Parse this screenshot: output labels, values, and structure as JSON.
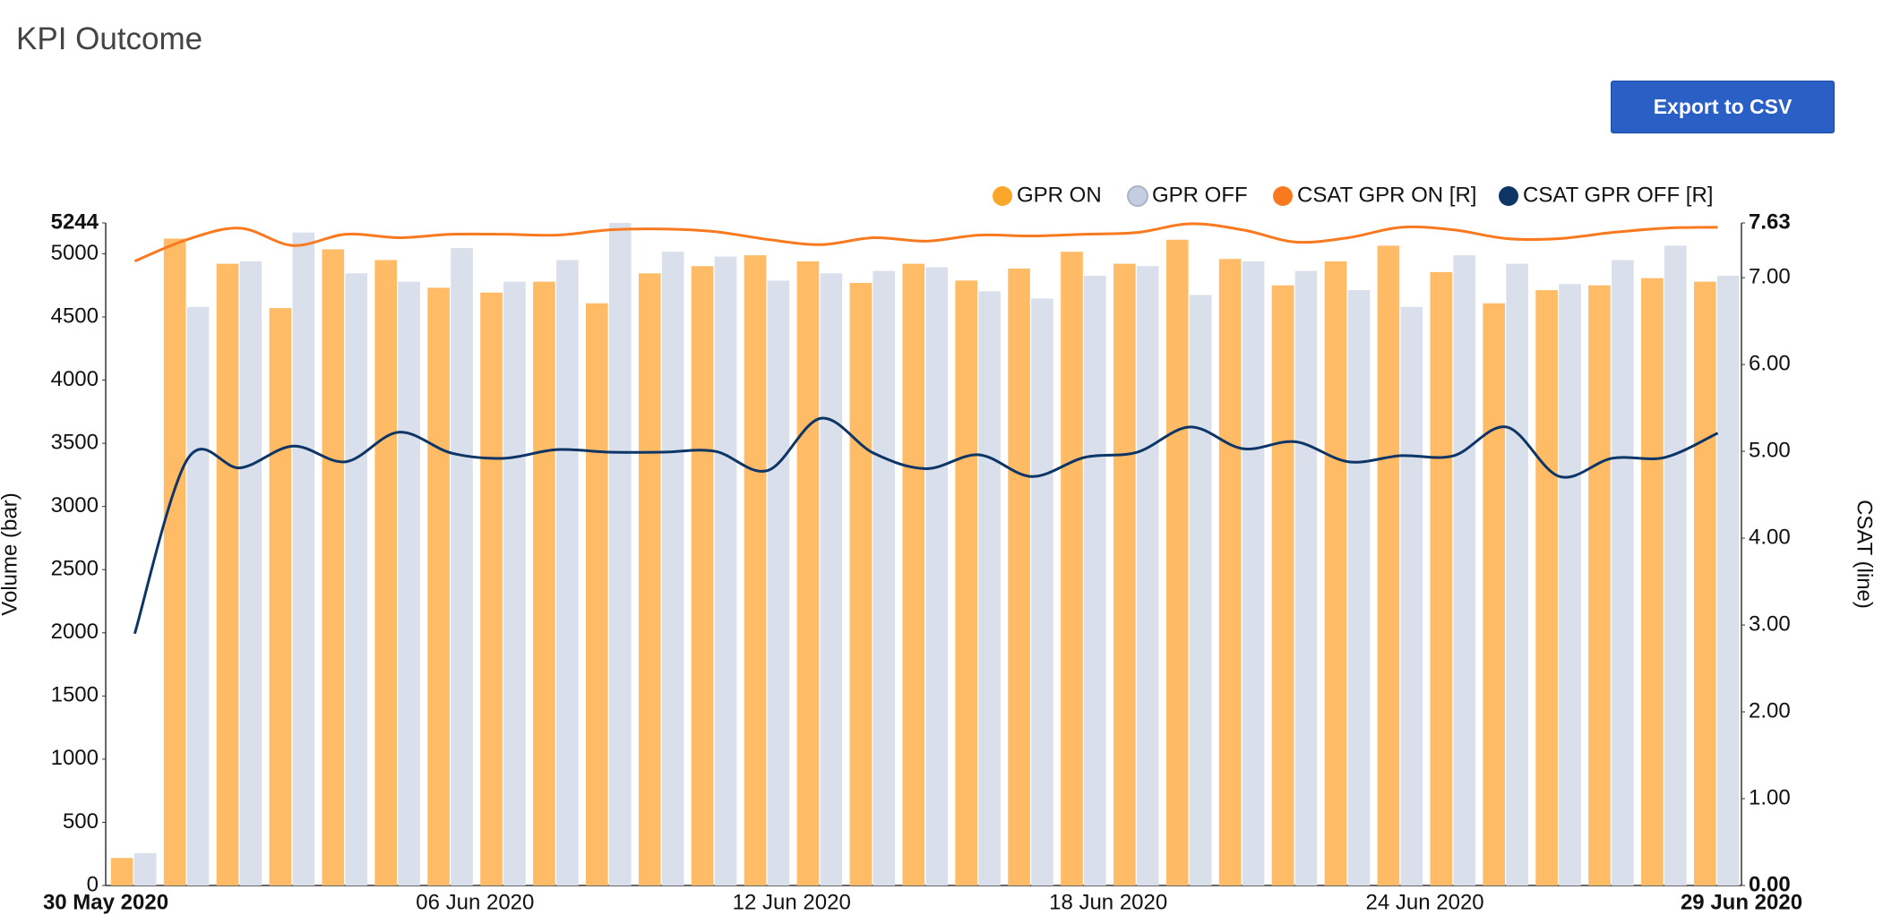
{
  "chart_data": {
    "type": "bar-line",
    "title": "KPI Outcome",
    "button": "Export to CSV",
    "ylabel": "Volume (bar)",
    "y2label": "CSAT (line)",
    "categories": [
      "30 May 2020",
      null,
      null,
      null,
      null,
      null,
      null,
      "06 Jun 2020",
      null,
      null,
      null,
      null,
      null,
      "12 Jun 2020",
      null,
      null,
      null,
      null,
      null,
      "18 Jun 2020",
      null,
      null,
      null,
      null,
      null,
      "24 Jun 2020",
      null,
      null,
      null,
      null,
      "29 Jun 2020"
    ],
    "series": [
      {
        "name": "GPR ON",
        "type": "bar",
        "color": "#ffbb66",
        "legend_color": "#f9a62b",
        "values": [
          218,
          5120,
          4921,
          4570,
          5035,
          4950,
          4731,
          4693,
          4779,
          4608,
          4845,
          4902,
          4988,
          4940,
          4769,
          4921,
          4788,
          4883,
          5016,
          4921,
          5111,
          4959,
          4750,
          4940,
          5064,
          4855,
          4608,
          4712,
          4750,
          4807,
          4779
        ]
      },
      {
        "name": "GPR OFF",
        "type": "bar",
        "color": "#d9dfeb",
        "legend_color": "#c5cde0",
        "values": [
          256,
          4579,
          4940,
          5168,
          4845,
          4779,
          5045,
          4779,
          4950,
          5244,
          5016,
          4978,
          4788,
          4845,
          4864,
          4893,
          4703,
          4646,
          4826,
          4902,
          4674,
          4940,
          4864,
          4712,
          4579,
          4988,
          4921,
          4760,
          4950,
          5064,
          4826
        ]
      },
      {
        "name": "CSAT GPR ON [R]",
        "type": "line",
        "axis": "y2",
        "color": "#f97a1e",
        "legend_color": "#f97a1e",
        "values": [
          7.19,
          7.44,
          7.57,
          7.37,
          7.5,
          7.46,
          7.5,
          7.5,
          7.49,
          7.55,
          7.56,
          7.53,
          7.44,
          7.38,
          7.46,
          7.42,
          7.49,
          7.48,
          7.5,
          7.52,
          7.62,
          7.55,
          7.41,
          7.46,
          7.58,
          7.55,
          7.45,
          7.45,
          7.52,
          7.57,
          7.58
        ]
      },
      {
        "name": "CSAT GPR OFF [R]",
        "type": "line",
        "axis": "y2",
        "color": "#0d3566",
        "legend_color": "#0d3566",
        "values": [
          2.9,
          4.91,
          4.81,
          5.06,
          4.88,
          5.22,
          4.98,
          4.92,
          5.02,
          4.99,
          4.99,
          5.0,
          4.78,
          5.38,
          4.98,
          4.8,
          4.96,
          4.71,
          4.93,
          4.99,
          5.28,
          5.03,
          5.11,
          4.88,
          4.95,
          4.95,
          5.28,
          4.71,
          4.92,
          4.93,
          5.21
        ]
      }
    ],
    "ylim": [
      0,
      5244
    ],
    "yticks": [
      0,
      500,
      1000,
      1500,
      2000,
      2500,
      3000,
      3500,
      4000,
      4500,
      5000,
      5244
    ],
    "y2lim": [
      0,
      7.63
    ],
    "y2ticks": [
      {
        "value": 0,
        "label": "0.00"
      },
      {
        "value": 1,
        "label": "1.00"
      },
      {
        "value": 2,
        "label": "2.00"
      },
      {
        "value": 3,
        "label": "3.00"
      },
      {
        "value": 4,
        "label": "4.00"
      },
      {
        "value": 5,
        "label": "5.00"
      },
      {
        "value": 6,
        "label": "6.00"
      },
      {
        "value": 7,
        "label": "7.00"
      },
      7.63
    ]
  }
}
